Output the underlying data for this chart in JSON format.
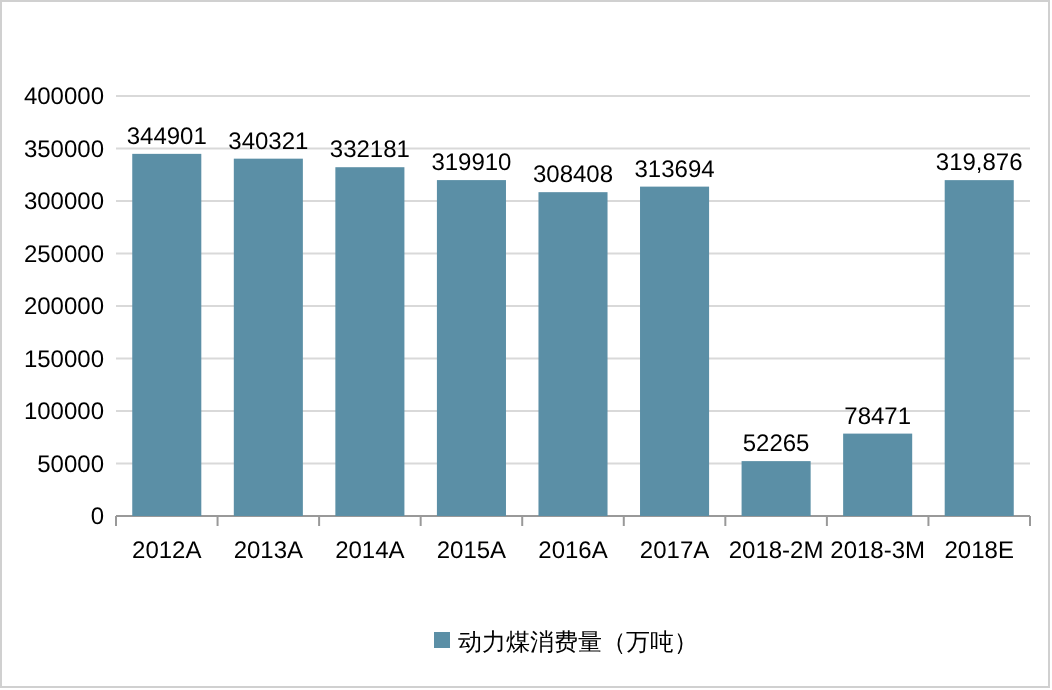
{
  "chart_data": {
    "type": "bar",
    "categories": [
      "2012A",
      "2013A",
      "2014A",
      "2015A",
      "2016A",
      "2017A",
      "2018-2M",
      "2018-3M",
      "2018E"
    ],
    "series": [
      {
        "name": "动力煤消费量（万吨）",
        "color": "#5b8fa6",
        "values": [
          344901,
          340321,
          332181,
          319910,
          308408,
          313694,
          52265,
          78471,
          319876
        ],
        "value_labels": [
          "344901",
          "340321",
          "332181",
          "319910",
          "308408",
          "313694",
          "52265",
          "78471",
          "319,876"
        ]
      }
    ],
    "ylim": [
      0,
      400000
    ],
    "yticks": [
      0,
      50000,
      100000,
      150000,
      200000,
      250000,
      300000,
      350000,
      400000
    ],
    "grid": "y",
    "legend": "bottom"
  }
}
